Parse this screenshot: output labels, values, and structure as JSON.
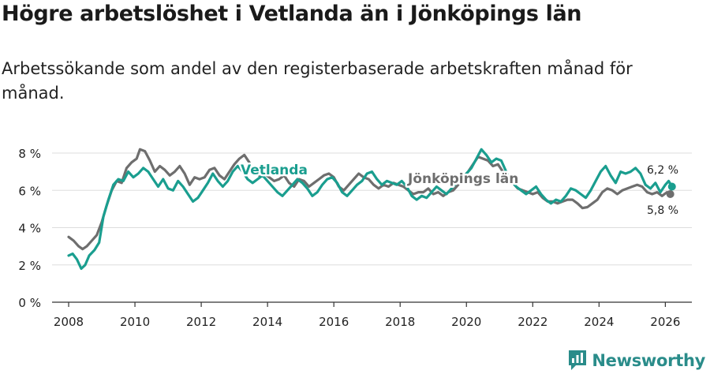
{
  "title": "Högre arbetslöshet i Vetlanda än i Jönköpings län",
  "subtitle": "Arbetssökande som andel av den registerbaserade arbetskraften månad för månad.",
  "brand": "Newsworthy",
  "colors": {
    "vetlanda": "#1a9e8f",
    "lan": "#6e6e6e",
    "grid": "#dddddd",
    "axis": "#333333",
    "brand": "#2a8c8a"
  },
  "chart_data": {
    "type": "line",
    "xlim": [
      2007.5,
      2026.8
    ],
    "ylim": [
      0,
      8
    ],
    "y_ticks": [
      0,
      2,
      4,
      6,
      8
    ],
    "y_tick_labels": [
      "0 %",
      "2 %",
      "4 %",
      "6 %",
      "8 %"
    ],
    "x_ticks": [
      2008,
      2010,
      2012,
      2014,
      2016,
      2018,
      2020,
      2022,
      2024,
      2026
    ],
    "x_tick_labels": [
      "2008",
      "2010",
      "2012",
      "2014",
      "2016",
      "2018",
      "2020",
      "2022",
      "2024",
      "2026"
    ],
    "series": [
      {
        "name": "Jönköpings län",
        "label": "Jönköpings län",
        "end_label": "5,8 %",
        "points": [
          [
            2008.0,
            3.5
          ],
          [
            2008.15,
            3.3
          ],
          [
            2008.3,
            3.0
          ],
          [
            2008.42,
            2.85
          ],
          [
            2008.55,
            3.0
          ],
          [
            2008.7,
            3.3
          ],
          [
            2008.85,
            3.6
          ],
          [
            2009.0,
            4.3
          ],
          [
            2009.15,
            5.2
          ],
          [
            2009.3,
            6.0
          ],
          [
            2009.45,
            6.5
          ],
          [
            2009.6,
            6.4
          ],
          [
            2009.75,
            7.2
          ],
          [
            2009.9,
            7.5
          ],
          [
            2010.05,
            7.7
          ],
          [
            2010.15,
            8.2
          ],
          [
            2010.3,
            8.1
          ],
          [
            2010.45,
            7.6
          ],
          [
            2010.6,
            7.0
          ],
          [
            2010.75,
            7.3
          ],
          [
            2010.9,
            7.1
          ],
          [
            2011.05,
            6.8
          ],
          [
            2011.2,
            7.0
          ],
          [
            2011.35,
            7.3
          ],
          [
            2011.5,
            6.9
          ],
          [
            2011.65,
            6.3
          ],
          [
            2011.8,
            6.7
          ],
          [
            2011.95,
            6.6
          ],
          [
            2012.1,
            6.7
          ],
          [
            2012.25,
            7.1
          ],
          [
            2012.4,
            7.2
          ],
          [
            2012.55,
            6.8
          ],
          [
            2012.7,
            6.6
          ],
          [
            2012.85,
            7.0
          ],
          [
            2013.0,
            7.4
          ],
          [
            2013.15,
            7.7
          ],
          [
            2013.3,
            7.9
          ],
          [
            2013.45,
            7.5
          ],
          [
            2013.6,
            7.0
          ],
          [
            2013.75,
            6.8
          ],
          [
            2013.9,
            6.9
          ],
          [
            2014.05,
            6.7
          ],
          [
            2014.2,
            6.5
          ],
          [
            2014.35,
            6.6
          ],
          [
            2014.5,
            6.8
          ],
          [
            2014.65,
            6.4
          ],
          [
            2014.8,
            6.2
          ],
          [
            2014.95,
            6.6
          ],
          [
            2015.1,
            6.5
          ],
          [
            2015.25,
            6.2
          ],
          [
            2015.4,
            6.4
          ],
          [
            2015.55,
            6.6
          ],
          [
            2015.7,
            6.8
          ],
          [
            2015.85,
            6.9
          ],
          [
            2016.0,
            6.7
          ],
          [
            2016.15,
            6.2
          ],
          [
            2016.3,
            6.0
          ],
          [
            2016.45,
            6.3
          ],
          [
            2016.6,
            6.6
          ],
          [
            2016.75,
            6.9
          ],
          [
            2016.9,
            6.7
          ],
          [
            2017.05,
            6.6
          ],
          [
            2017.2,
            6.3
          ],
          [
            2017.35,
            6.1
          ],
          [
            2017.5,
            6.3
          ],
          [
            2017.65,
            6.2
          ],
          [
            2017.8,
            6.4
          ],
          [
            2017.95,
            6.3
          ],
          [
            2018.1,
            6.2
          ],
          [
            2018.25,
            6.0
          ],
          [
            2018.4,
            5.8
          ],
          [
            2018.55,
            5.9
          ],
          [
            2018.7,
            5.9
          ],
          [
            2018.85,
            6.1
          ],
          [
            2019.0,
            5.8
          ],
          [
            2019.15,
            5.9
          ],
          [
            2019.3,
            5.7
          ],
          [
            2019.45,
            5.9
          ],
          [
            2019.6,
            6.0
          ],
          [
            2019.75,
            6.3
          ],
          [
            2019.9,
            6.7
          ],
          [
            2020.05,
            7.0
          ],
          [
            2020.2,
            7.4
          ],
          [
            2020.35,
            7.8
          ],
          [
            2020.5,
            7.7
          ],
          [
            2020.65,
            7.6
          ],
          [
            2020.8,
            7.3
          ],
          [
            2020.95,
            7.4
          ],
          [
            2021.1,
            7.0
          ],
          [
            2021.25,
            6.7
          ],
          [
            2021.4,
            6.4
          ],
          [
            2021.55,
            6.1
          ],
          [
            2021.7,
            6.0
          ],
          [
            2021.85,
            5.9
          ],
          [
            2022.0,
            5.8
          ],
          [
            2022.15,
            5.9
          ],
          [
            2022.3,
            5.6
          ],
          [
            2022.45,
            5.4
          ],
          [
            2022.6,
            5.4
          ],
          [
            2022.75,
            5.3
          ],
          [
            2022.9,
            5.4
          ],
          [
            2023.05,
            5.5
          ],
          [
            2023.2,
            5.5
          ],
          [
            2023.35,
            5.3
          ],
          [
            2023.5,
            5.05
          ],
          [
            2023.65,
            5.1
          ],
          [
            2023.8,
            5.3
          ],
          [
            2023.95,
            5.5
          ],
          [
            2024.1,
            5.9
          ],
          [
            2024.25,
            6.1
          ],
          [
            2024.4,
            6.0
          ],
          [
            2024.55,
            5.8
          ],
          [
            2024.7,
            6.0
          ],
          [
            2024.85,
            6.1
          ],
          [
            2025.0,
            6.2
          ],
          [
            2025.15,
            6.3
          ],
          [
            2025.3,
            6.2
          ],
          [
            2025.45,
            5.9
          ],
          [
            2025.6,
            5.8
          ],
          [
            2025.75,
            5.9
          ],
          [
            2025.9,
            5.7
          ],
          [
            2026.05,
            5.9
          ],
          [
            2026.15,
            5.8
          ]
        ]
      },
      {
        "name": "Vetlanda",
        "label": "Vetlanda",
        "end_label": "6,2 %",
        "points": [
          [
            2008.0,
            2.5
          ],
          [
            2008.12,
            2.6
          ],
          [
            2008.25,
            2.3
          ],
          [
            2008.38,
            1.8
          ],
          [
            2008.5,
            2.0
          ],
          [
            2008.62,
            2.5
          ],
          [
            2008.78,
            2.8
          ],
          [
            2008.92,
            3.2
          ],
          [
            2009.05,
            4.6
          ],
          [
            2009.2,
            5.5
          ],
          [
            2009.35,
            6.3
          ],
          [
            2009.5,
            6.6
          ],
          [
            2009.65,
            6.5
          ],
          [
            2009.8,
            7.0
          ],
          [
            2009.95,
            6.7
          ],
          [
            2010.1,
            6.9
          ],
          [
            2010.25,
            7.2
          ],
          [
            2010.4,
            7.0
          ],
          [
            2010.55,
            6.6
          ],
          [
            2010.7,
            6.2
          ],
          [
            2010.85,
            6.6
          ],
          [
            2011.0,
            6.1
          ],
          [
            2011.15,
            6.0
          ],
          [
            2011.3,
            6.5
          ],
          [
            2011.45,
            6.2
          ],
          [
            2011.6,
            5.8
          ],
          [
            2011.75,
            5.4
          ],
          [
            2011.9,
            5.6
          ],
          [
            2012.05,
            6.0
          ],
          [
            2012.2,
            6.4
          ],
          [
            2012.35,
            6.9
          ],
          [
            2012.5,
            6.5
          ],
          [
            2012.65,
            6.2
          ],
          [
            2012.8,
            6.5
          ],
          [
            2012.95,
            7.0
          ],
          [
            2013.1,
            7.3
          ],
          [
            2013.25,
            7.0
          ],
          [
            2013.4,
            6.6
          ],
          [
            2013.55,
            6.4
          ],
          [
            2013.7,
            6.6
          ],
          [
            2013.85,
            6.8
          ],
          [
            2014.0,
            6.5
          ],
          [
            2014.15,
            6.2
          ],
          [
            2014.3,
            5.9
          ],
          [
            2014.45,
            5.7
          ],
          [
            2014.6,
            6.0
          ],
          [
            2014.75,
            6.3
          ],
          [
            2014.9,
            6.6
          ],
          [
            2015.05,
            6.4
          ],
          [
            2015.2,
            6.1
          ],
          [
            2015.35,
            5.7
          ],
          [
            2015.5,
            5.9
          ],
          [
            2015.65,
            6.3
          ],
          [
            2015.8,
            6.6
          ],
          [
            2015.95,
            6.7
          ],
          [
            2016.1,
            6.4
          ],
          [
            2016.25,
            5.9
          ],
          [
            2016.4,
            5.7
          ],
          [
            2016.55,
            6.0
          ],
          [
            2016.7,
            6.3
          ],
          [
            2016.85,
            6.5
          ],
          [
            2017.0,
            6.9
          ],
          [
            2017.15,
            7.0
          ],
          [
            2017.3,
            6.6
          ],
          [
            2017.45,
            6.3
          ],
          [
            2017.6,
            6.5
          ],
          [
            2017.75,
            6.4
          ],
          [
            2017.9,
            6.3
          ],
          [
            2018.05,
            6.5
          ],
          [
            2018.2,
            6.2
          ],
          [
            2018.35,
            5.7
          ],
          [
            2018.5,
            5.5
          ],
          [
            2018.65,
            5.7
          ],
          [
            2018.8,
            5.6
          ],
          [
            2018.95,
            5.9
          ],
          [
            2019.1,
            6.2
          ],
          [
            2019.25,
            6.0
          ],
          [
            2019.4,
            5.8
          ],
          [
            2019.55,
            6.1
          ],
          [
            2019.7,
            6.4
          ],
          [
            2019.85,
            6.6
          ],
          [
            2020.0,
            6.9
          ],
          [
            2020.15,
            7.2
          ],
          [
            2020.3,
            7.7
          ],
          [
            2020.45,
            8.2
          ],
          [
            2020.6,
            7.9
          ],
          [
            2020.75,
            7.5
          ],
          [
            2020.9,
            7.7
          ],
          [
            2021.05,
            7.6
          ],
          [
            2021.2,
            7.0
          ],
          [
            2021.35,
            6.5
          ],
          [
            2021.5,
            6.2
          ],
          [
            2021.65,
            6.0
          ],
          [
            2021.8,
            5.8
          ],
          [
            2021.95,
            6.0
          ],
          [
            2022.1,
            6.2
          ],
          [
            2022.25,
            5.8
          ],
          [
            2022.4,
            5.5
          ],
          [
            2022.55,
            5.3
          ],
          [
            2022.7,
            5.5
          ],
          [
            2022.85,
            5.4
          ],
          [
            2023.0,
            5.7
          ],
          [
            2023.15,
            6.1
          ],
          [
            2023.3,
            6.0
          ],
          [
            2023.45,
            5.8
          ],
          [
            2023.6,
            5.6
          ],
          [
            2023.75,
            6.0
          ],
          [
            2023.9,
            6.5
          ],
          [
            2024.05,
            7.0
          ],
          [
            2024.2,
            7.3
          ],
          [
            2024.35,
            6.8
          ],
          [
            2024.5,
            6.4
          ],
          [
            2024.65,
            7.0
          ],
          [
            2024.8,
            6.9
          ],
          [
            2024.95,
            7.0
          ],
          [
            2025.1,
            7.2
          ],
          [
            2025.25,
            6.9
          ],
          [
            2025.4,
            6.3
          ],
          [
            2025.55,
            6.1
          ],
          [
            2025.7,
            6.4
          ],
          [
            2025.85,
            5.9
          ],
          [
            2026.0,
            6.3
          ],
          [
            2026.1,
            6.5
          ],
          [
            2026.2,
            6.2
          ]
        ]
      }
    ]
  }
}
